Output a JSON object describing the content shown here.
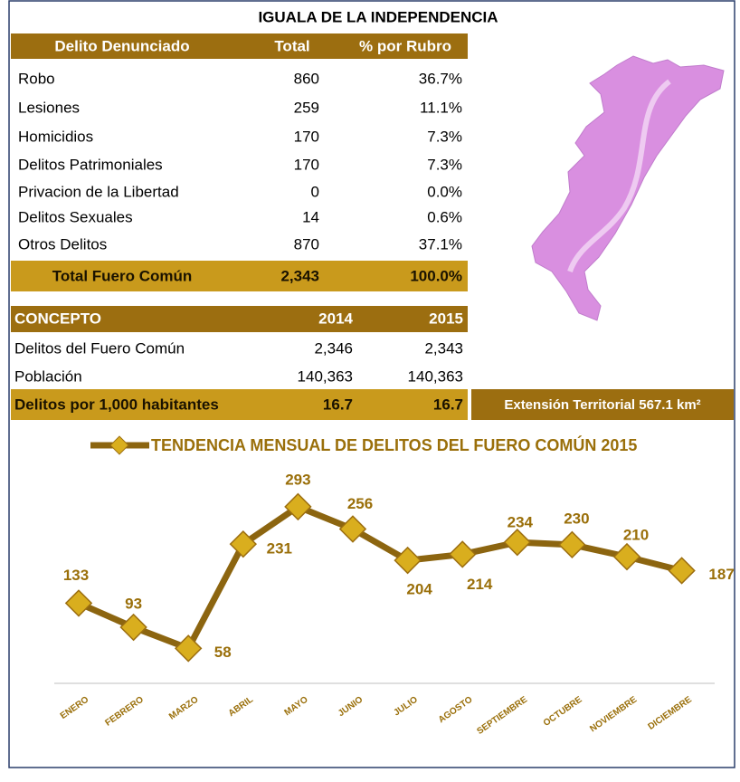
{
  "title": "IGUALA DE LA INDEPENDENCIA",
  "table": {
    "headers": [
      "Delito Denunciado",
      "Total",
      "% por Rubro"
    ],
    "rows": [
      [
        "Robo",
        "860",
        "36.7%"
      ],
      [
        "Lesiones",
        "259",
        "11.1%"
      ],
      [
        "Homicidios",
        "170",
        "7.3%"
      ],
      [
        "Delitos Patrimoniales",
        "170",
        "7.3%"
      ],
      [
        "Privacion de la Libertad",
        "0",
        "0.0%"
      ],
      [
        "Delitos Sexuales",
        "14",
        "0.6%"
      ],
      [
        "Otros Delitos",
        "870",
        "37.1%"
      ]
    ],
    "total": [
      "Total Fuero Común",
      "2,343",
      "100.0%"
    ]
  },
  "concept": {
    "headers": [
      "CONCEPTO",
      "2014",
      "2015"
    ],
    "rows": [
      [
        "Delitos del Fuero Común",
        "2,346",
        "2,343"
      ],
      [
        "Población",
        "140,363",
        "140,363"
      ]
    ],
    "total": [
      "Delitos por 1,000 habitantes",
      "16.7",
      "16.7"
    ]
  },
  "extension": "Extensión Territorial 567.1 km²",
  "chart_data": {
    "type": "line",
    "title": "TENDENCIA MENSUAL DE DELITOS DEL FUERO COMÚN 2015",
    "categories": [
      "ENERO",
      "FEBRERO",
      "MARZO",
      "ABRIL",
      "MAYO",
      "JUNIO",
      "JULIO",
      "AGOSTO",
      "SEPTIEMBRE",
      "OCTUBRE",
      "NOVIEMBRE",
      "DICIEMBRE"
    ],
    "values": [
      133,
      93,
      58,
      231,
      293,
      256,
      204,
      214,
      234,
      230,
      210,
      187
    ],
    "color": "#8c6510",
    "marker_color": "#d9ae1e"
  }
}
